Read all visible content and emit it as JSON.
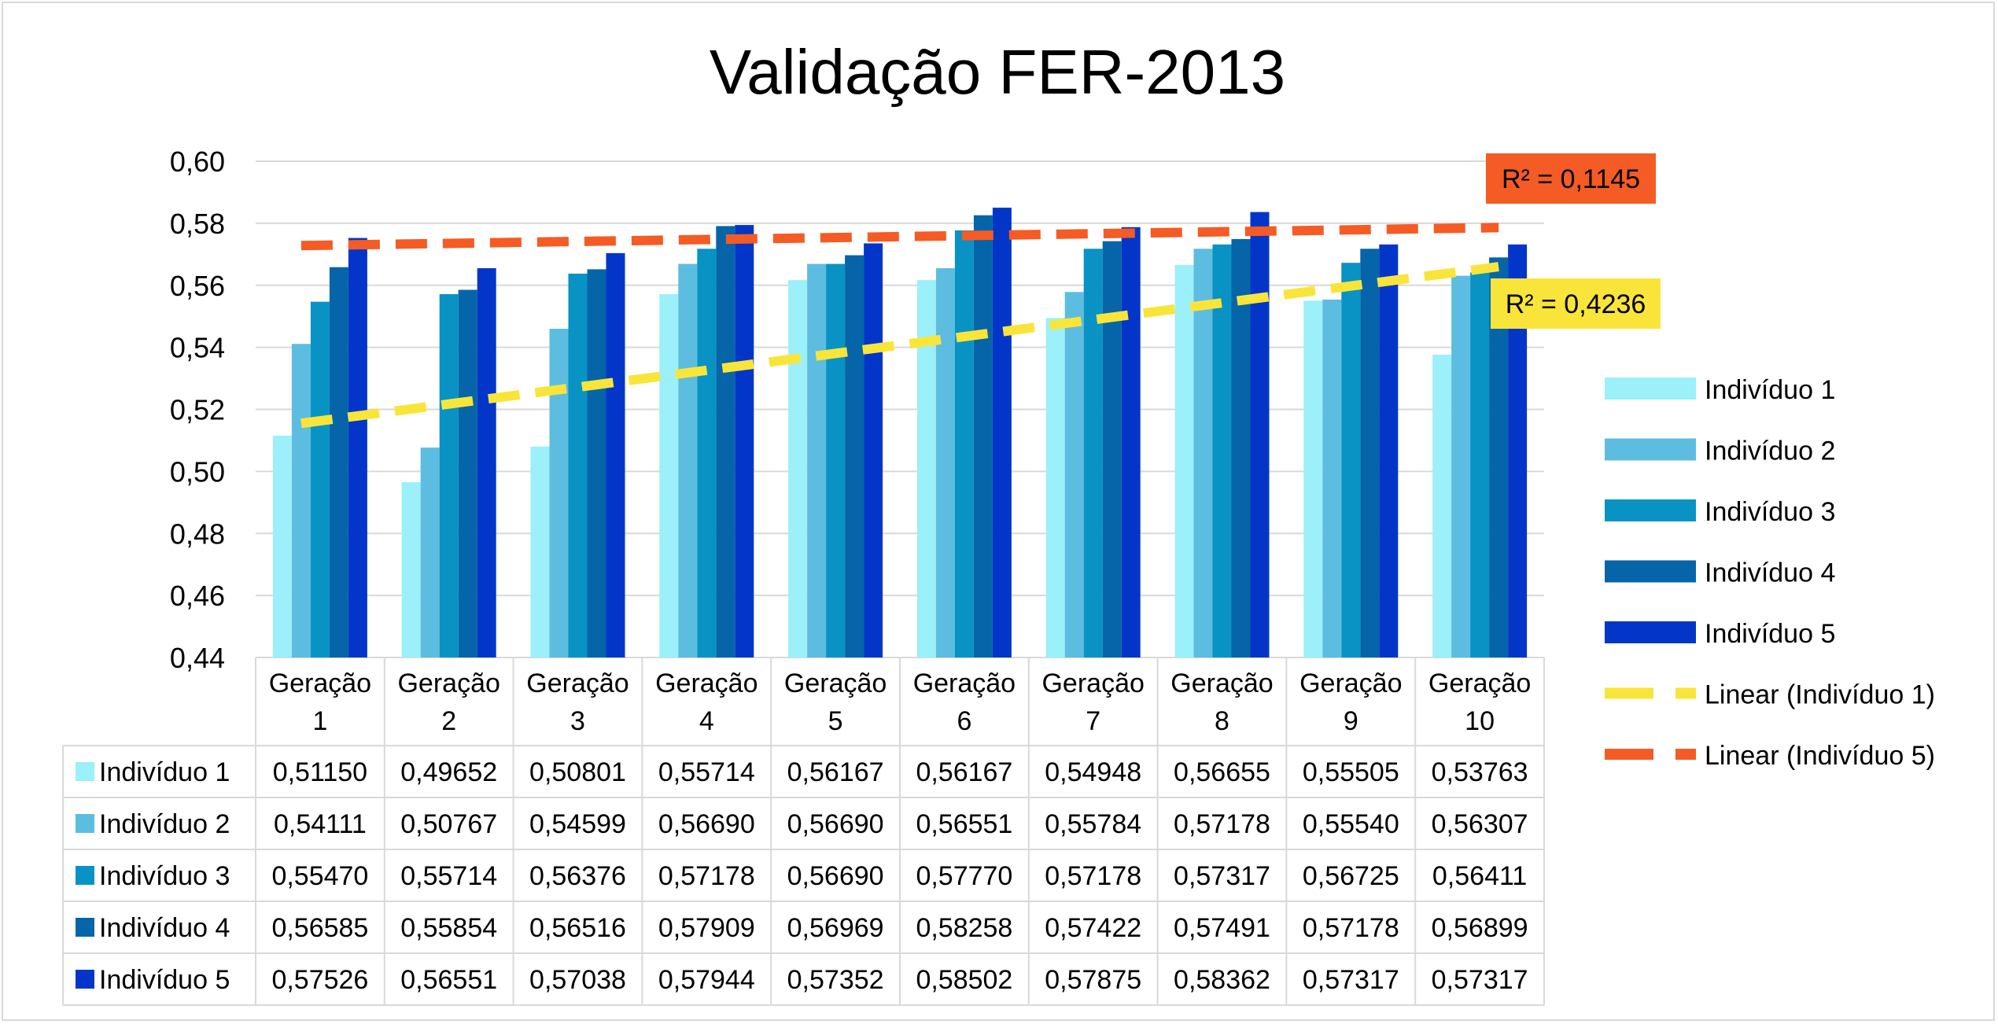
{
  "chart_data": {
    "type": "bar",
    "title": "Validação FER-2013",
    "categories": [
      "Geração 1",
      "Geração 2",
      "Geração 3",
      "Geração 4",
      "Geração 5",
      "Geração 6",
      "Geração 7",
      "Geração 8",
      "Geração 9",
      "Geração 10"
    ],
    "category_lines": [
      [
        "Geração",
        "1"
      ],
      [
        "Geração",
        "2"
      ],
      [
        "Geração",
        "3"
      ],
      [
        "Geração",
        "4"
      ],
      [
        "Geração",
        "5"
      ],
      [
        "Geração",
        "6"
      ],
      [
        "Geração",
        "7"
      ],
      [
        "Geração",
        "8"
      ],
      [
        "Geração",
        "9"
      ],
      [
        "Geração",
        "10"
      ]
    ],
    "ylim": [
      0.44,
      0.6
    ],
    "yticks": [
      "0,44",
      "0,46",
      "0,48",
      "0,50",
      "0,52",
      "0,54",
      "0,56",
      "0,58",
      "0,60"
    ],
    "ytick_values": [
      0.44,
      0.46,
      0.48,
      0.5,
      0.52,
      0.54,
      0.56,
      0.58,
      0.6
    ],
    "grid": true,
    "legend_position": "right",
    "series": [
      {
        "name": "Indivíduo 1",
        "color": "#9bf0fa",
        "values": [
          0.5115,
          0.49652,
          0.50801,
          0.55714,
          0.56167,
          0.56167,
          0.54948,
          0.56655,
          0.55505,
          0.53763
        ],
        "labels": [
          "0,51150",
          "0,49652",
          "0,50801",
          "0,55714",
          "0,56167",
          "0,56167",
          "0,54948",
          "0,56655",
          "0,55505",
          "0,53763"
        ]
      },
      {
        "name": "Indivíduo 2",
        "color": "#5dbde0",
        "values": [
          0.54111,
          0.50767,
          0.54599,
          0.5669,
          0.5669,
          0.56551,
          0.55784,
          0.57178,
          0.5554,
          0.56307
        ],
        "labels": [
          "0,54111",
          "0,50767",
          "0,54599",
          "0,56690",
          "0,56690",
          "0,56551",
          "0,55784",
          "0,57178",
          "0,55540",
          "0,56307"
        ]
      },
      {
        "name": "Indivíduo 3",
        "color": "#0893c4",
        "values": [
          0.5547,
          0.55714,
          0.56376,
          0.57178,
          0.5669,
          0.5777,
          0.57178,
          0.57317,
          0.56725,
          0.56411
        ],
        "labels": [
          "0,55470",
          "0,55714",
          "0,56376",
          "0,57178",
          "0,56690",
          "0,57770",
          "0,57178",
          "0,57317",
          "0,56725",
          "0,56411"
        ]
      },
      {
        "name": "Indivíduo 4",
        "color": "#0565a8",
        "values": [
          0.56585,
          0.55854,
          0.56516,
          0.57909,
          0.56969,
          0.58258,
          0.57422,
          0.57491,
          0.57178,
          0.56899
        ],
        "labels": [
          "0,56585",
          "0,55854",
          "0,56516",
          "0,57909",
          "0,56969",
          "0,58258",
          "0,57422",
          "0,57491",
          "0,57178",
          "0,56899"
        ]
      },
      {
        "name": "Indivíduo 5",
        "color": "#0336c8",
        "values": [
          0.57526,
          0.56551,
          0.57038,
          0.57944,
          0.57352,
          0.58502,
          0.57875,
          0.58362,
          0.57317,
          0.57317
        ],
        "labels": [
          "0,57526",
          "0,56551",
          "0,57038",
          "0,57944",
          "0,57352",
          "0,58502",
          "0,57875",
          "0,58362",
          "0,57317",
          "0,57317"
        ]
      }
    ],
    "trendlines": [
      {
        "name": "Linear (Indivíduo 1)",
        "series": "Indivíduo 1",
        "color": "#f9e53a",
        "r2_label": "R² = 0,4236",
        "start": 0.5155,
        "end": 0.566
      },
      {
        "name": "Linear (Indivíduo 5)",
        "series": "Indivíduo 5",
        "color": "#f55b24",
        "r2_label": "R² = 0,1145",
        "start": 0.5728,
        "end": 0.5786
      }
    ]
  }
}
